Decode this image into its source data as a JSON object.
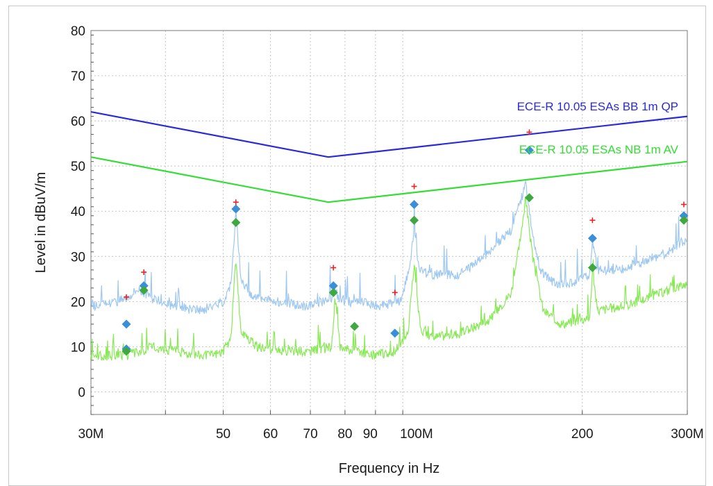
{
  "chart_data": {
    "type": "line",
    "title": "",
    "xlabel": "Frequency in Hz",
    "ylabel": "Level in dBuV/m",
    "x_scale": "log",
    "xlim": [
      30000000,
      300000000
    ],
    "ylim": [
      -5,
      80
    ],
    "grid": true,
    "y_ticks": [
      0,
      10,
      20,
      30,
      40,
      50,
      60,
      70,
      80
    ],
    "x_ticks": [
      {
        "value": 30000000,
        "label": "30M"
      },
      {
        "value": 40000000,
        "label": ""
      },
      {
        "value": 50000000,
        "label": "50"
      },
      {
        "value": 60000000,
        "label": "60"
      },
      {
        "value": 70000000,
        "label": "70"
      },
      {
        "value": 80000000,
        "label": "80"
      },
      {
        "value": 90000000,
        "label": "90"
      },
      {
        "value": 100000000,
        "label": "100M"
      },
      {
        "value": 200000000,
        "label": "200"
      },
      {
        "value": 300000000,
        "label": "300M"
      }
    ],
    "series": [
      {
        "name": "ECE-R 10.05 ESAs BB 1m QP",
        "color": "#2a2ad8",
        "style": "limit-line",
        "x": [
          30000000,
          75000000,
          300000000
        ],
        "y": [
          62,
          52,
          61
        ]
      },
      {
        "name": "ECE-R 10.05 ESAs NB 1m AV",
        "color": "#33dd33",
        "style": "limit-line",
        "x": [
          30000000,
          75000000,
          300000000
        ],
        "y": [
          52,
          42,
          51
        ]
      },
      {
        "color": "#9ec8f0",
        "style": "spectrum-trace",
        "x": [
          30000000,
          33000000,
          34500000,
          36000000,
          37500000,
          41000000,
          46000000,
          50000000,
          51500000,
          52500000,
          53500000,
          56000000,
          62000000,
          68000000,
          73000000,
          76000000,
          77000000,
          78500000,
          85000000,
          92000000,
          99000000,
          103000000,
          104500000,
          106000000,
          110000000,
          125000000,
          140000000,
          152000000,
          161000000,
          163000000,
          165000000,
          170000000,
          180000000,
          195000000,
          206000000,
          208000000,
          212000000,
          230000000,
          255000000,
          280000000,
          300000000
        ],
        "y": [
          19,
          20,
          21,
          23,
          21,
          19,
          18,
          20,
          24,
          40,
          25,
          21,
          20,
          19,
          20,
          21,
          22,
          20,
          20,
          19,
          20,
          28,
          37,
          28,
          26,
          26,
          31,
          36,
          46,
          40,
          35,
          27,
          24,
          24,
          26,
          33,
          27,
          27,
          29,
          31,
          34
        ]
      },
      {
        "color": "#88e855",
        "style": "spectrum-trace",
        "x": [
          30000000,
          34000000,
          36500000,
          38000000,
          42000000,
          47000000,
          50000000,
          51500000,
          52500000,
          53500000,
          57000000,
          63000000,
          70000000,
          76000000,
          77000000,
          78500000,
          88000000,
          97000000,
          102000000,
          104500000,
          107000000,
          112000000,
          125000000,
          140000000,
          152000000,
          161000000,
          165000000,
          172000000,
          185000000,
          200000000,
          206000000,
          208000000,
          212000000,
          235000000,
          260000000,
          285000000,
          300000000
        ],
        "y": [
          8,
          8,
          9,
          10,
          9,
          8,
          9,
          12,
          30,
          13,
          10,
          9,
          9,
          10,
          21,
          10,
          8,
          9,
          13,
          28,
          14,
          12,
          13,
          16,
          22,
          42,
          30,
          18,
          15,
          16,
          17,
          27,
          18,
          19,
          21,
          23,
          24
        ]
      }
    ],
    "markers": {
      "peak": {
        "color": "#ee2222",
        "symbol": "+",
        "x": [
          34400000,
          36800000,
          52500000,
          76500000,
          97000000,
          104500000,
          163000000,
          208000000,
          296000000
        ],
        "y": [
          21,
          26.5,
          42,
          27.5,
          22,
          45.5,
          57.5,
          38,
          41.5
        ]
      },
      "qp": {
        "color": "#3b8fd8",
        "symbol": "diamond",
        "x": [
          34400000,
          34400000,
          36800000,
          52500000,
          76500000,
          97000000,
          104500000,
          163000000,
          208000000,
          296000000
        ],
        "y": [
          15,
          9.5,
          23.5,
          40.5,
          23.5,
          13,
          41.5,
          53.5,
          34,
          39
        ]
      },
      "av": {
        "color": "#40a840",
        "symbol": "diamond",
        "x": [
          34400000,
          36800000,
          52500000,
          76500000,
          83000000,
          104500000,
          163000000,
          208000000,
          296000000
        ],
        "y": [
          9,
          22.5,
          37.5,
          22,
          14.5,
          38,
          43,
          27.5,
          38
        ]
      }
    }
  }
}
